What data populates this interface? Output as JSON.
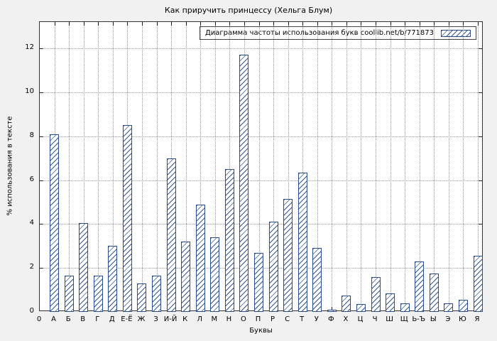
{
  "figure": {
    "background": "#f1f1f1",
    "plot_background": "#ffffff",
    "bar_color": "#2a4d8f",
    "grid_color": "#9a9a9a"
  },
  "chart_data": {
    "type": "bar",
    "title": "Как приручить принцессу (Хельга Блум)",
    "legend": "Диаграмма частоты использования букв coollib.net/b/771873",
    "xlabel": "Буквы",
    "ylabel": "% использования в тексте",
    "ylim": [
      0,
      13.2
    ],
    "yticks": [
      0,
      2,
      4,
      6,
      8,
      10,
      12
    ],
    "origin_label": "0",
    "grid": true,
    "legend_position": "top-right",
    "categories": [
      "А",
      "Б",
      "В",
      "Г",
      "Д",
      "Е-Ё",
      "Ж",
      "З",
      "И-Й",
      "К",
      "Л",
      "М",
      "Н",
      "О",
      "П",
      "Р",
      "С",
      "Т",
      "У",
      "Ф",
      "Х",
      "Ц",
      "Ч",
      "Ш",
      "Щ",
      "Ь-Ъ",
      "Ы",
      "Э",
      "Ю",
      "Я"
    ],
    "values": [
      8.1,
      1.65,
      4.05,
      1.65,
      3.0,
      8.5,
      1.3,
      1.65,
      7.0,
      3.2,
      4.9,
      3.4,
      6.5,
      11.7,
      2.7,
      4.1,
      5.15,
      6.35,
      2.9,
      0.1,
      0.75,
      0.35,
      1.6,
      0.85,
      0.4,
      2.3,
      1.75,
      0.4,
      0.55,
      2.55
    ]
  }
}
